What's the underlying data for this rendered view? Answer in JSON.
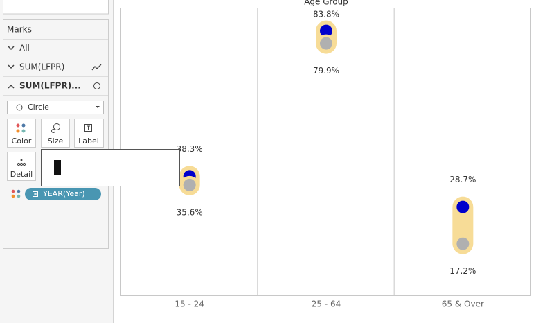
{
  "marks_panel": {
    "title": "Marks",
    "rows": [
      "All",
      "SUM(LFPR)",
      "SUM(LFPR)..."
    ],
    "mark_type": "Circle",
    "buttons": [
      "Color",
      "Size",
      "Label",
      "Detail"
    ],
    "pill": "YEAR(Year)"
  },
  "chart_data": {
    "type": "dumbbell",
    "title": "Age Group",
    "categories": [
      "15 - 24",
      "25 - 64",
      "65 & Over"
    ],
    "series": [
      {
        "color": "#0000cc",
        "values": [
          38.3,
          83.8,
          28.7
        ],
        "value_labels": [
          "38.3%",
          "83.8%",
          "28.7%"
        ]
      },
      {
        "color": "#b0b0b0",
        "values": [
          35.6,
          79.9,
          17.2
        ],
        "value_labels": [
          "35.6%",
          "79.9%",
          "17.2%"
        ]
      }
    ],
    "connector_color": "#f7dc97",
    "ylim": [
      0,
      90
    ]
  }
}
